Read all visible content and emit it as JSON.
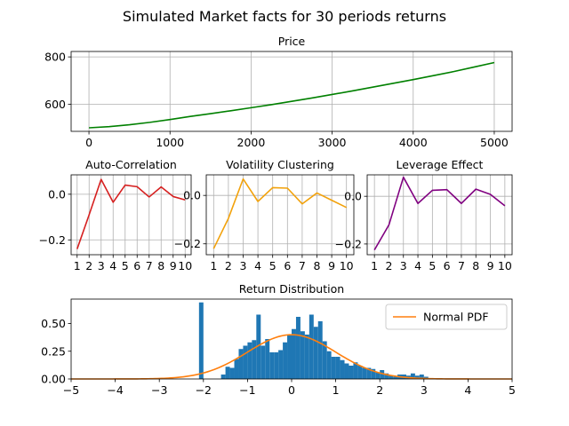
{
  "figure": {
    "title": "Simulated Market facts for 30 periods returns"
  },
  "chart_data": [
    {
      "id": "price",
      "type": "line",
      "title": "Price",
      "color": "#008000",
      "grid": true,
      "xlim": [
        -220,
        5220
      ],
      "ylim": [
        485,
        823
      ],
      "xticks": [
        0,
        1000,
        2000,
        3000,
        4000,
        5000
      ],
      "xtick_labels": [
        "0",
        "1000",
        "2000",
        "3000",
        "4000",
        "5000"
      ],
      "yticks": [
        600,
        800
      ],
      "ytick_labels": [
        "600",
        "800"
      ],
      "x": [
        0,
        250,
        500,
        750,
        1000,
        1250,
        1500,
        1750,
        2000,
        2250,
        2500,
        2750,
        3000,
        3250,
        3500,
        3750,
        4000,
        4250,
        4500,
        4750,
        5000
      ],
      "y": [
        500,
        505,
        513,
        523,
        535,
        548,
        560,
        572,
        585,
        598,
        612,
        626,
        641,
        656,
        672,
        688,
        704,
        721,
        738,
        757,
        776
      ]
    },
    {
      "id": "autocorr",
      "type": "line",
      "title": "Auto-Correlation",
      "color": "#d62020",
      "grid": true,
      "xlim": [
        0.5,
        10.5
      ],
      "ylim": [
        -0.265,
        0.085
      ],
      "xticks": [
        1,
        2,
        3,
        4,
        5,
        6,
        7,
        8,
        9,
        10
      ],
      "xtick_labels": [
        "1",
        "2",
        "3",
        "4",
        "5",
        "6",
        "7",
        "8",
        "9",
        "10"
      ],
      "yticks": [
        0.0,
        -0.2
      ],
      "ytick_labels": [
        "0.0",
        "−0.2"
      ],
      "x": [
        1,
        2,
        3,
        4,
        5,
        6,
        7,
        8,
        9,
        10
      ],
      "y": [
        -0.24,
        -0.09,
        0.065,
        -0.035,
        0.04,
        0.033,
        -0.012,
        0.032,
        -0.01,
        -0.025
      ]
    },
    {
      "id": "volatility",
      "type": "line",
      "title": "Volatility Clustering",
      "color": "#f2a20c",
      "grid": true,
      "xlim": [
        0.5,
        10.5
      ],
      "ylim": [
        -0.245,
        0.085
      ],
      "xticks": [
        1,
        2,
        3,
        4,
        5,
        6,
        7,
        8,
        9,
        10
      ],
      "xtick_labels": [
        "1",
        "2",
        "3",
        "4",
        "5",
        "6",
        "7",
        "8",
        "9",
        "10"
      ],
      "yticks": [
        0.0,
        -0.2
      ],
      "ytick_labels": [
        "0.0",
        "−0.2"
      ],
      "x": [
        1,
        2,
        3,
        4,
        5,
        6,
        7,
        8,
        9,
        10
      ],
      "y": [
        -0.22,
        -0.095,
        0.068,
        -0.025,
        0.032,
        0.03,
        -0.035,
        0.01,
        -0.02,
        -0.05
      ]
    },
    {
      "id": "leverage",
      "type": "line",
      "title": "Leverage Effect",
      "color": "#800080",
      "grid": true,
      "xlim": [
        0.5,
        10.5
      ],
      "ylim": [
        -0.245,
        0.09
      ],
      "xticks": [
        1,
        2,
        3,
        4,
        5,
        6,
        7,
        8,
        9,
        10
      ],
      "xtick_labels": [
        "1",
        "2",
        "3",
        "4",
        "5",
        "6",
        "7",
        "8",
        "9",
        "10"
      ],
      "yticks": [
        0.0,
        -0.2
      ],
      "ytick_labels": [
        "0.0",
        "−0.2"
      ],
      "x": [
        1,
        2,
        3,
        4,
        5,
        6,
        7,
        8,
        9,
        10
      ],
      "y": [
        -0.225,
        -0.12,
        0.08,
        -0.03,
        0.025,
        0.028,
        -0.03,
        0.03,
        0.008,
        -0.04
      ]
    },
    {
      "id": "distribution",
      "type": "bar",
      "title": "Return Distribution",
      "bar_color": "#1f77b4",
      "pdf_color": "#ff7f0e",
      "grid": false,
      "xlim": [
        -5,
        5
      ],
      "ylim": [
        0,
        0.72
      ],
      "xticks": [
        -5,
        -4,
        -3,
        -2,
        -1,
        0,
        1,
        2,
        3,
        4,
        5
      ],
      "xtick_labels": [
        "−5",
        "−4",
        "−3",
        "−2",
        "−1",
        "0",
        "1",
        "2",
        "3",
        "4",
        "5"
      ],
      "yticks": [
        0.0,
        0.25,
        0.5
      ],
      "ytick_labels": [
        "0.00",
        "0.25",
        "0.50"
      ],
      "bin_width": 0.1,
      "bin_starts": [
        -2.1,
        -1.6,
        -1.5,
        -1.4,
        -1.3,
        -1.2,
        -1.1,
        -1.0,
        -0.9,
        -0.8,
        -0.7,
        -0.6,
        -0.5,
        -0.4,
        -0.3,
        -0.2,
        -0.1,
        0.0,
        0.1,
        0.2,
        0.3,
        0.4,
        0.5,
        0.6,
        0.7,
        0.8,
        0.9,
        1.0,
        1.1,
        1.2,
        1.3,
        1.4,
        1.5,
        1.6,
        1.7,
        1.8,
        1.9,
        2.0,
        2.1,
        2.2,
        2.3,
        2.4,
        2.5,
        2.6,
        2.7,
        2.8,
        2.9,
        3.0
      ],
      "values": [
        0.69,
        0.04,
        0.11,
        0.1,
        0.18,
        0.27,
        0.3,
        0.33,
        0.35,
        0.58,
        0.3,
        0.36,
        0.24,
        0.24,
        0.26,
        0.33,
        0.4,
        0.45,
        0.56,
        0.43,
        0.4,
        0.58,
        0.47,
        0.52,
        0.34,
        0.25,
        0.2,
        0.2,
        0.17,
        0.14,
        0.12,
        0.15,
        0.12,
        0.1,
        0.1,
        0.09,
        0.06,
        0.08,
        0.05,
        0.03,
        0.02,
        0.04,
        0.04,
        0.03,
        0.05,
        0.03,
        0.04,
        0.02
      ],
      "pdf": {
        "mean": 0.0,
        "std": 1.0,
        "label": "Normal PDF"
      },
      "legend_position": "upper right"
    }
  ]
}
